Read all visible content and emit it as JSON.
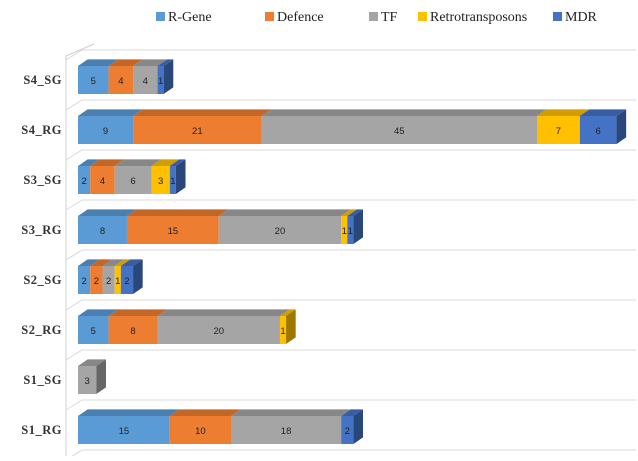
{
  "chart_data": {
    "type": "bar",
    "orientation": "horizontal",
    "stacked": true,
    "style": "3d",
    "legend_position": "top",
    "grid": "horizontal-lines",
    "categories": [
      "S4_SG",
      "S4_RG",
      "S3_SG",
      "S3_RG",
      "S2_SG",
      "S2_RG",
      "S1_SG",
      "S1_RG"
    ],
    "series": [
      {
        "name": "R-Gene",
        "color": "#5B9BD5",
        "values": [
          5,
          9,
          2,
          8,
          2,
          5,
          0,
          15
        ]
      },
      {
        "name": "Defence",
        "color": "#ED7D31",
        "values": [
          4,
          21,
          4,
          15,
          2,
          8,
          0,
          10
        ]
      },
      {
        "name": "TF",
        "color": "#A5A5A5",
        "values": [
          4,
          45,
          6,
          20,
          2,
          20,
          3,
          18
        ]
      },
      {
        "name": "Retrotransposons",
        "color": "#FFC000",
        "values": [
          0,
          7,
          3,
          1,
          1,
          1,
          0,
          0
        ]
      },
      {
        "name": "MDR",
        "color": "#4472C4",
        "values": [
          1,
          6,
          1,
          1,
          2,
          0,
          0,
          2
        ]
      }
    ],
    "title": "",
    "xlabel": "",
    "ylabel": ""
  }
}
